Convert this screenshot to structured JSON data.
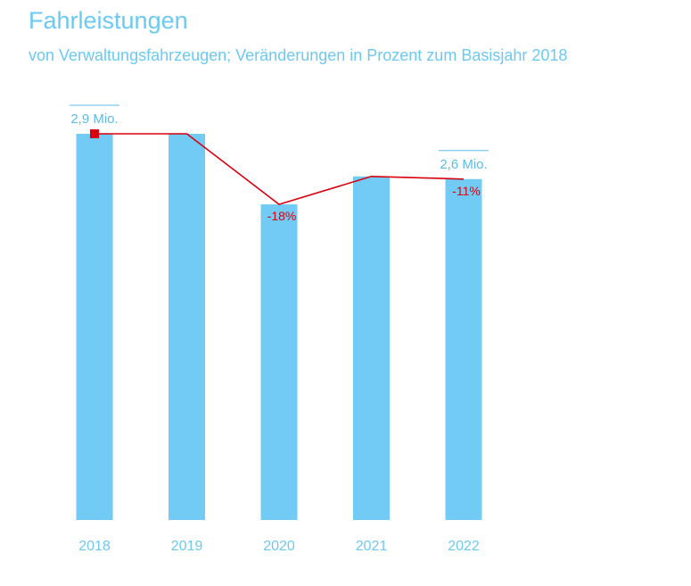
{
  "chart_data": {
    "type": "bar",
    "title": "Fahrleistungen",
    "subtitle": "von Verwaltungsfahrzeugen; Veränderungen in Prozent zum Basisjahr 2018",
    "categories": [
      "2018",
      "2019",
      "2020",
      "2021",
      "2022"
    ],
    "values": [
      2.9,
      2.9,
      2.37,
      2.58,
      2.56
    ],
    "unit": "Mio.",
    "ylim": [
      0,
      2.9
    ],
    "grid": false,
    "value_labels": [
      {
        "index": 0,
        "text": "2,9 Mio."
      },
      {
        "index": 4,
        "text": "2,6 Mio."
      }
    ],
    "line_series": {
      "name": "Veränderung zum Basisjahr 2018 (%)",
      "values": [
        0,
        0,
        -18,
        -11,
        -11
      ]
    },
    "percent_labels": [
      {
        "index": 2,
        "text": "-18%"
      },
      {
        "index": 4,
        "text": "-11%"
      }
    ],
    "colors": {
      "bar": "#71cbf4",
      "line": "#d8000f",
      "text": "#6cc9f2"
    }
  }
}
